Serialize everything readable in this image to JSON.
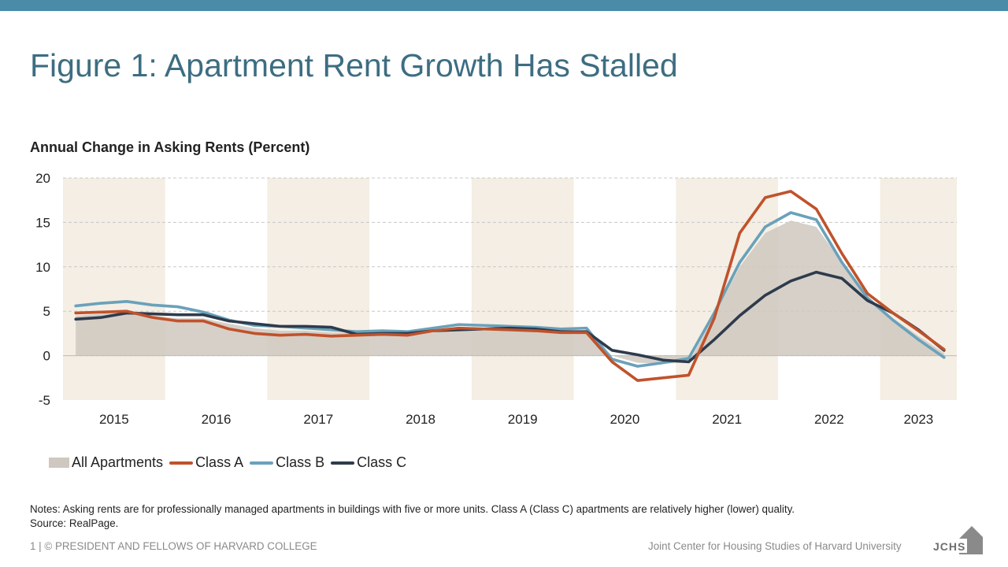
{
  "header": {
    "title": "Figure 1: Apartment Rent Growth Has Stalled"
  },
  "chart_data": {
    "type": "area",
    "title": "Annual Change in Asking Rents (Percent)",
    "xlabel": "",
    "ylabel": "",
    "ylim": [
      -5,
      20
    ],
    "yticks": [
      "20",
      "15",
      "10",
      "5",
      "0",
      "-5"
    ],
    "grid": true,
    "legend_position": "bottom-left",
    "x": [
      "2015Q1",
      "2015Q2",
      "2015Q3",
      "2015Q4",
      "2016Q1",
      "2016Q2",
      "2016Q3",
      "2016Q4",
      "2017Q1",
      "2017Q2",
      "2017Q3",
      "2017Q4",
      "2018Q1",
      "2018Q2",
      "2018Q3",
      "2018Q4",
      "2019Q1",
      "2019Q2",
      "2019Q3",
      "2019Q4",
      "2020Q1",
      "2020Q2",
      "2020Q3",
      "2020Q4",
      "2021Q1",
      "2021Q2",
      "2021Q3",
      "2021Q4",
      "2022Q1",
      "2022Q2",
      "2022Q3",
      "2022Q4",
      "2023Q1",
      "2023Q2",
      "2023Q3"
    ],
    "year_labels": [
      "2015",
      "2016",
      "2017",
      "2018",
      "2019",
      "2020",
      "2021",
      "2022",
      "2023"
    ],
    "shaded_years": [
      "2015",
      "2017",
      "2019",
      "2021",
      "2023"
    ],
    "colors": {
      "all": "#cfc8c0",
      "class_a": "#c0522b",
      "class_b": "#6aa1ba",
      "class_c": "#2e3b4c",
      "band": "#f4eee4",
      "grid": "#c8c8c8"
    },
    "series": [
      {
        "name": "All Apartments",
        "type": "area",
        "values": [
          4.5,
          4.7,
          5.0,
          4.5,
          4.2,
          4.2,
          3.6,
          3.1,
          2.8,
          2.8,
          2.6,
          2.5,
          2.5,
          2.5,
          2.6,
          2.9,
          3.0,
          3.0,
          2.9,
          2.7,
          2.7,
          0.0,
          -0.8,
          -0.9,
          -0.8,
          4.5,
          10.0,
          13.8,
          15.2,
          14.5,
          10.5,
          6.5,
          4.2,
          2.2,
          0.3
        ]
      },
      {
        "name": "Class A",
        "type": "line",
        "values": [
          4.8,
          4.9,
          5.0,
          4.3,
          3.9,
          3.9,
          3.0,
          2.5,
          2.3,
          2.4,
          2.2,
          2.3,
          2.4,
          2.3,
          2.8,
          3.1,
          3.0,
          2.9,
          2.8,
          2.6,
          2.6,
          -0.7,
          -2.8,
          -2.5,
          -2.2,
          4.2,
          13.8,
          17.8,
          18.5,
          16.5,
          11.5,
          7.0,
          4.8,
          2.8,
          0.7
        ]
      },
      {
        "name": "Class B",
        "type": "line",
        "values": [
          5.6,
          5.9,
          6.1,
          5.7,
          5.5,
          4.9,
          4.0,
          3.4,
          3.3,
          3.1,
          2.9,
          2.7,
          2.8,
          2.7,
          3.1,
          3.5,
          3.4,
          3.3,
          3.2,
          3.0,
          3.1,
          -0.4,
          -1.2,
          -0.8,
          -0.3,
          4.8,
          10.5,
          14.5,
          16.1,
          15.3,
          10.5,
          6.5,
          4.0,
          1.8,
          -0.2
        ]
      },
      {
        "name": "Class C",
        "type": "line",
        "values": [
          4.1,
          4.3,
          4.8,
          4.7,
          4.6,
          4.6,
          3.9,
          3.6,
          3.3,
          3.3,
          3.2,
          2.4,
          2.5,
          2.5,
          2.8,
          2.9,
          3.0,
          3.1,
          3.0,
          2.7,
          2.7,
          0.6,
          0.1,
          -0.5,
          -0.7,
          1.8,
          4.5,
          6.8,
          8.4,
          9.4,
          8.7,
          6.2,
          4.8,
          2.9,
          0.6
        ]
      }
    ]
  },
  "notes": "Notes: Asking rents are for professionally managed apartments in buildings with five or more units. Class A (Class C) apartments are relatively higher (lower) quality.",
  "source": "Source: RealPage.",
  "footer": {
    "left": "1 | © PRESIDENT AND FELLOWS OF HARVARD COLLEGE",
    "right": "Joint Center for Housing Studies of Harvard University",
    "logo_text": "JCHS"
  }
}
